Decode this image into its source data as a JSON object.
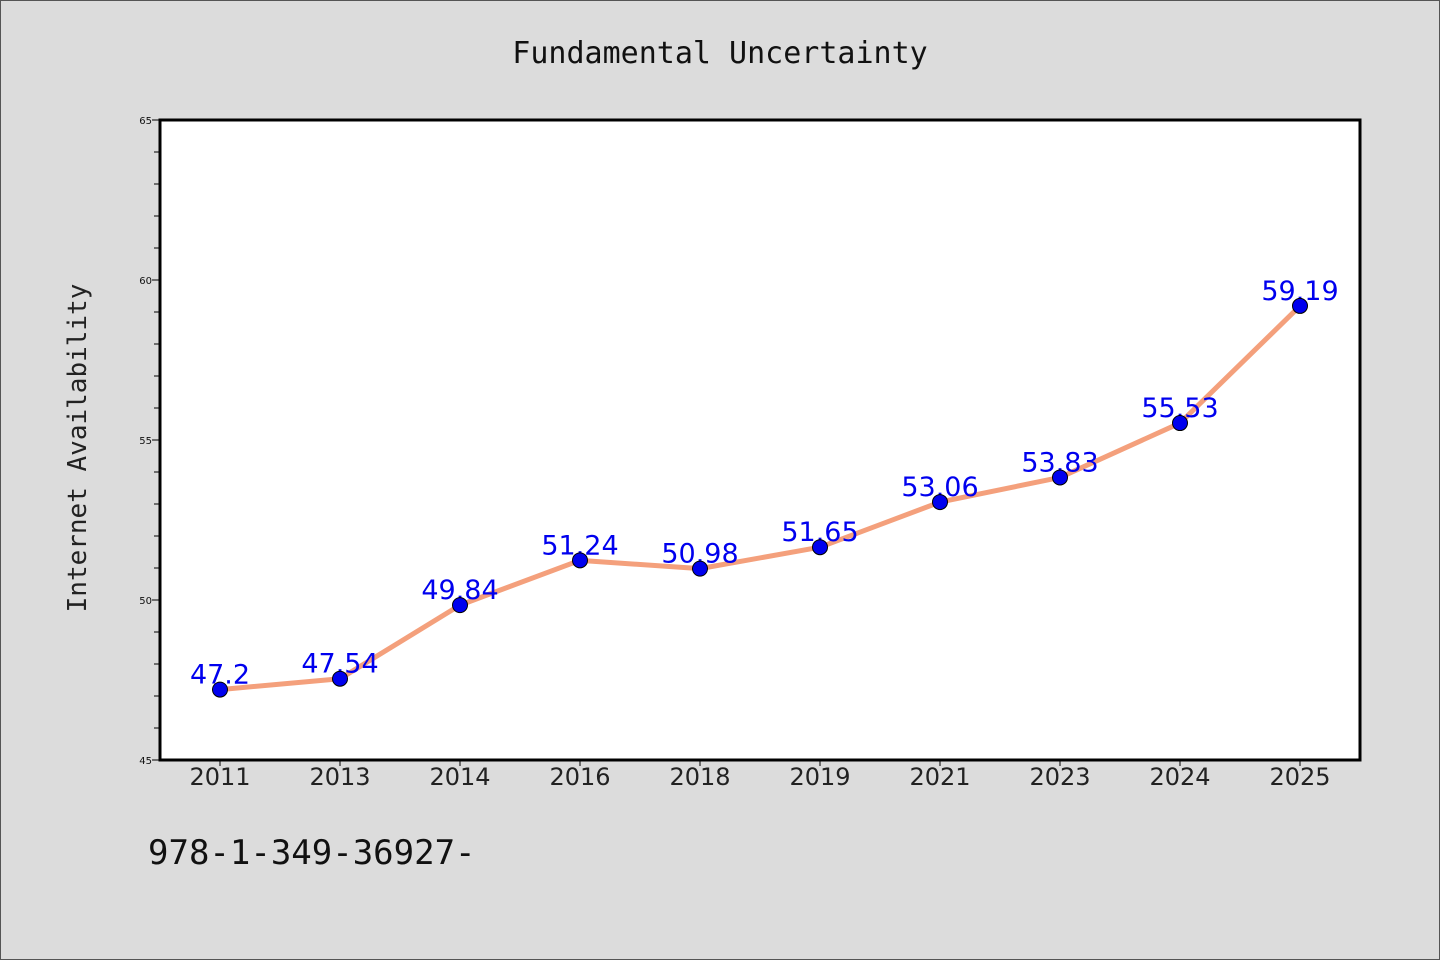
{
  "chart_data": {
    "type": "line",
    "title": "Fundamental Uncertainty",
    "xlabel": "",
    "ylabel": "Internet Availability",
    "categories": [
      "2011",
      "2013",
      "2014",
      "2016",
      "2018",
      "2019",
      "2021",
      "2023",
      "2024",
      "2025"
    ],
    "series": [
      {
        "values": [
          47.2,
          47.54,
          49.84,
          51.24,
          50.98,
          51.65,
          53.06,
          53.83,
          55.53,
          59.19
        ],
        "labels": [
          "47.2",
          "47.54",
          "49.84",
          "51.24",
          "50.98",
          "51.65",
          "53.06",
          "53.83",
          "55.53",
          "59.19"
        ],
        "line_color": "#f4a07c",
        "marker_color": "#0000ee",
        "label_color": "#0000ee"
      }
    ],
    "ylim": [
      45,
      65
    ],
    "yticks": [
      "45",
      "50",
      "55",
      "60",
      "65"
    ],
    "grid": false,
    "legend": "none"
  },
  "footer": {
    "text": "978-1-349-36927-"
  }
}
